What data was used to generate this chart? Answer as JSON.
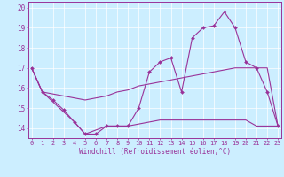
{
  "title": "",
  "xlabel": "Windchill (Refroidissement éolien,°C)",
  "background_color": "#cceeff",
  "line_color": "#993399",
  "x_hours": [
    0,
    1,
    2,
    3,
    4,
    5,
    6,
    7,
    8,
    9,
    10,
    11,
    12,
    13,
    14,
    15,
    16,
    17,
    18,
    19,
    20,
    21,
    22,
    23
  ],
  "windchill": [
    17.0,
    15.8,
    15.4,
    14.9,
    14.3,
    13.7,
    13.7,
    14.1,
    14.1,
    14.1,
    15.0,
    16.8,
    17.3,
    17.5,
    15.8,
    18.5,
    19.0,
    19.1,
    19.8,
    19.0,
    17.3,
    17.0,
    15.8,
    14.1
  ],
  "band_upper": [
    17.0,
    15.8,
    15.7,
    15.6,
    15.5,
    15.4,
    15.5,
    15.6,
    15.8,
    15.9,
    16.1,
    16.2,
    16.3,
    16.4,
    16.5,
    16.6,
    16.7,
    16.8,
    16.9,
    17.0,
    17.0,
    17.0,
    17.0,
    14.1
  ],
  "band_lower": [
    17.0,
    15.8,
    15.3,
    14.8,
    14.3,
    13.7,
    13.9,
    14.1,
    14.1,
    14.1,
    14.2,
    14.3,
    14.4,
    14.4,
    14.4,
    14.4,
    14.4,
    14.4,
    14.4,
    14.4,
    14.4,
    14.1,
    14.1,
    14.1
  ],
  "ylim": [
    13.5,
    20.3
  ],
  "yticks": [
    14,
    15,
    16,
    17,
    18,
    19,
    20
  ],
  "xlim": [
    -0.3,
    23.3
  ]
}
